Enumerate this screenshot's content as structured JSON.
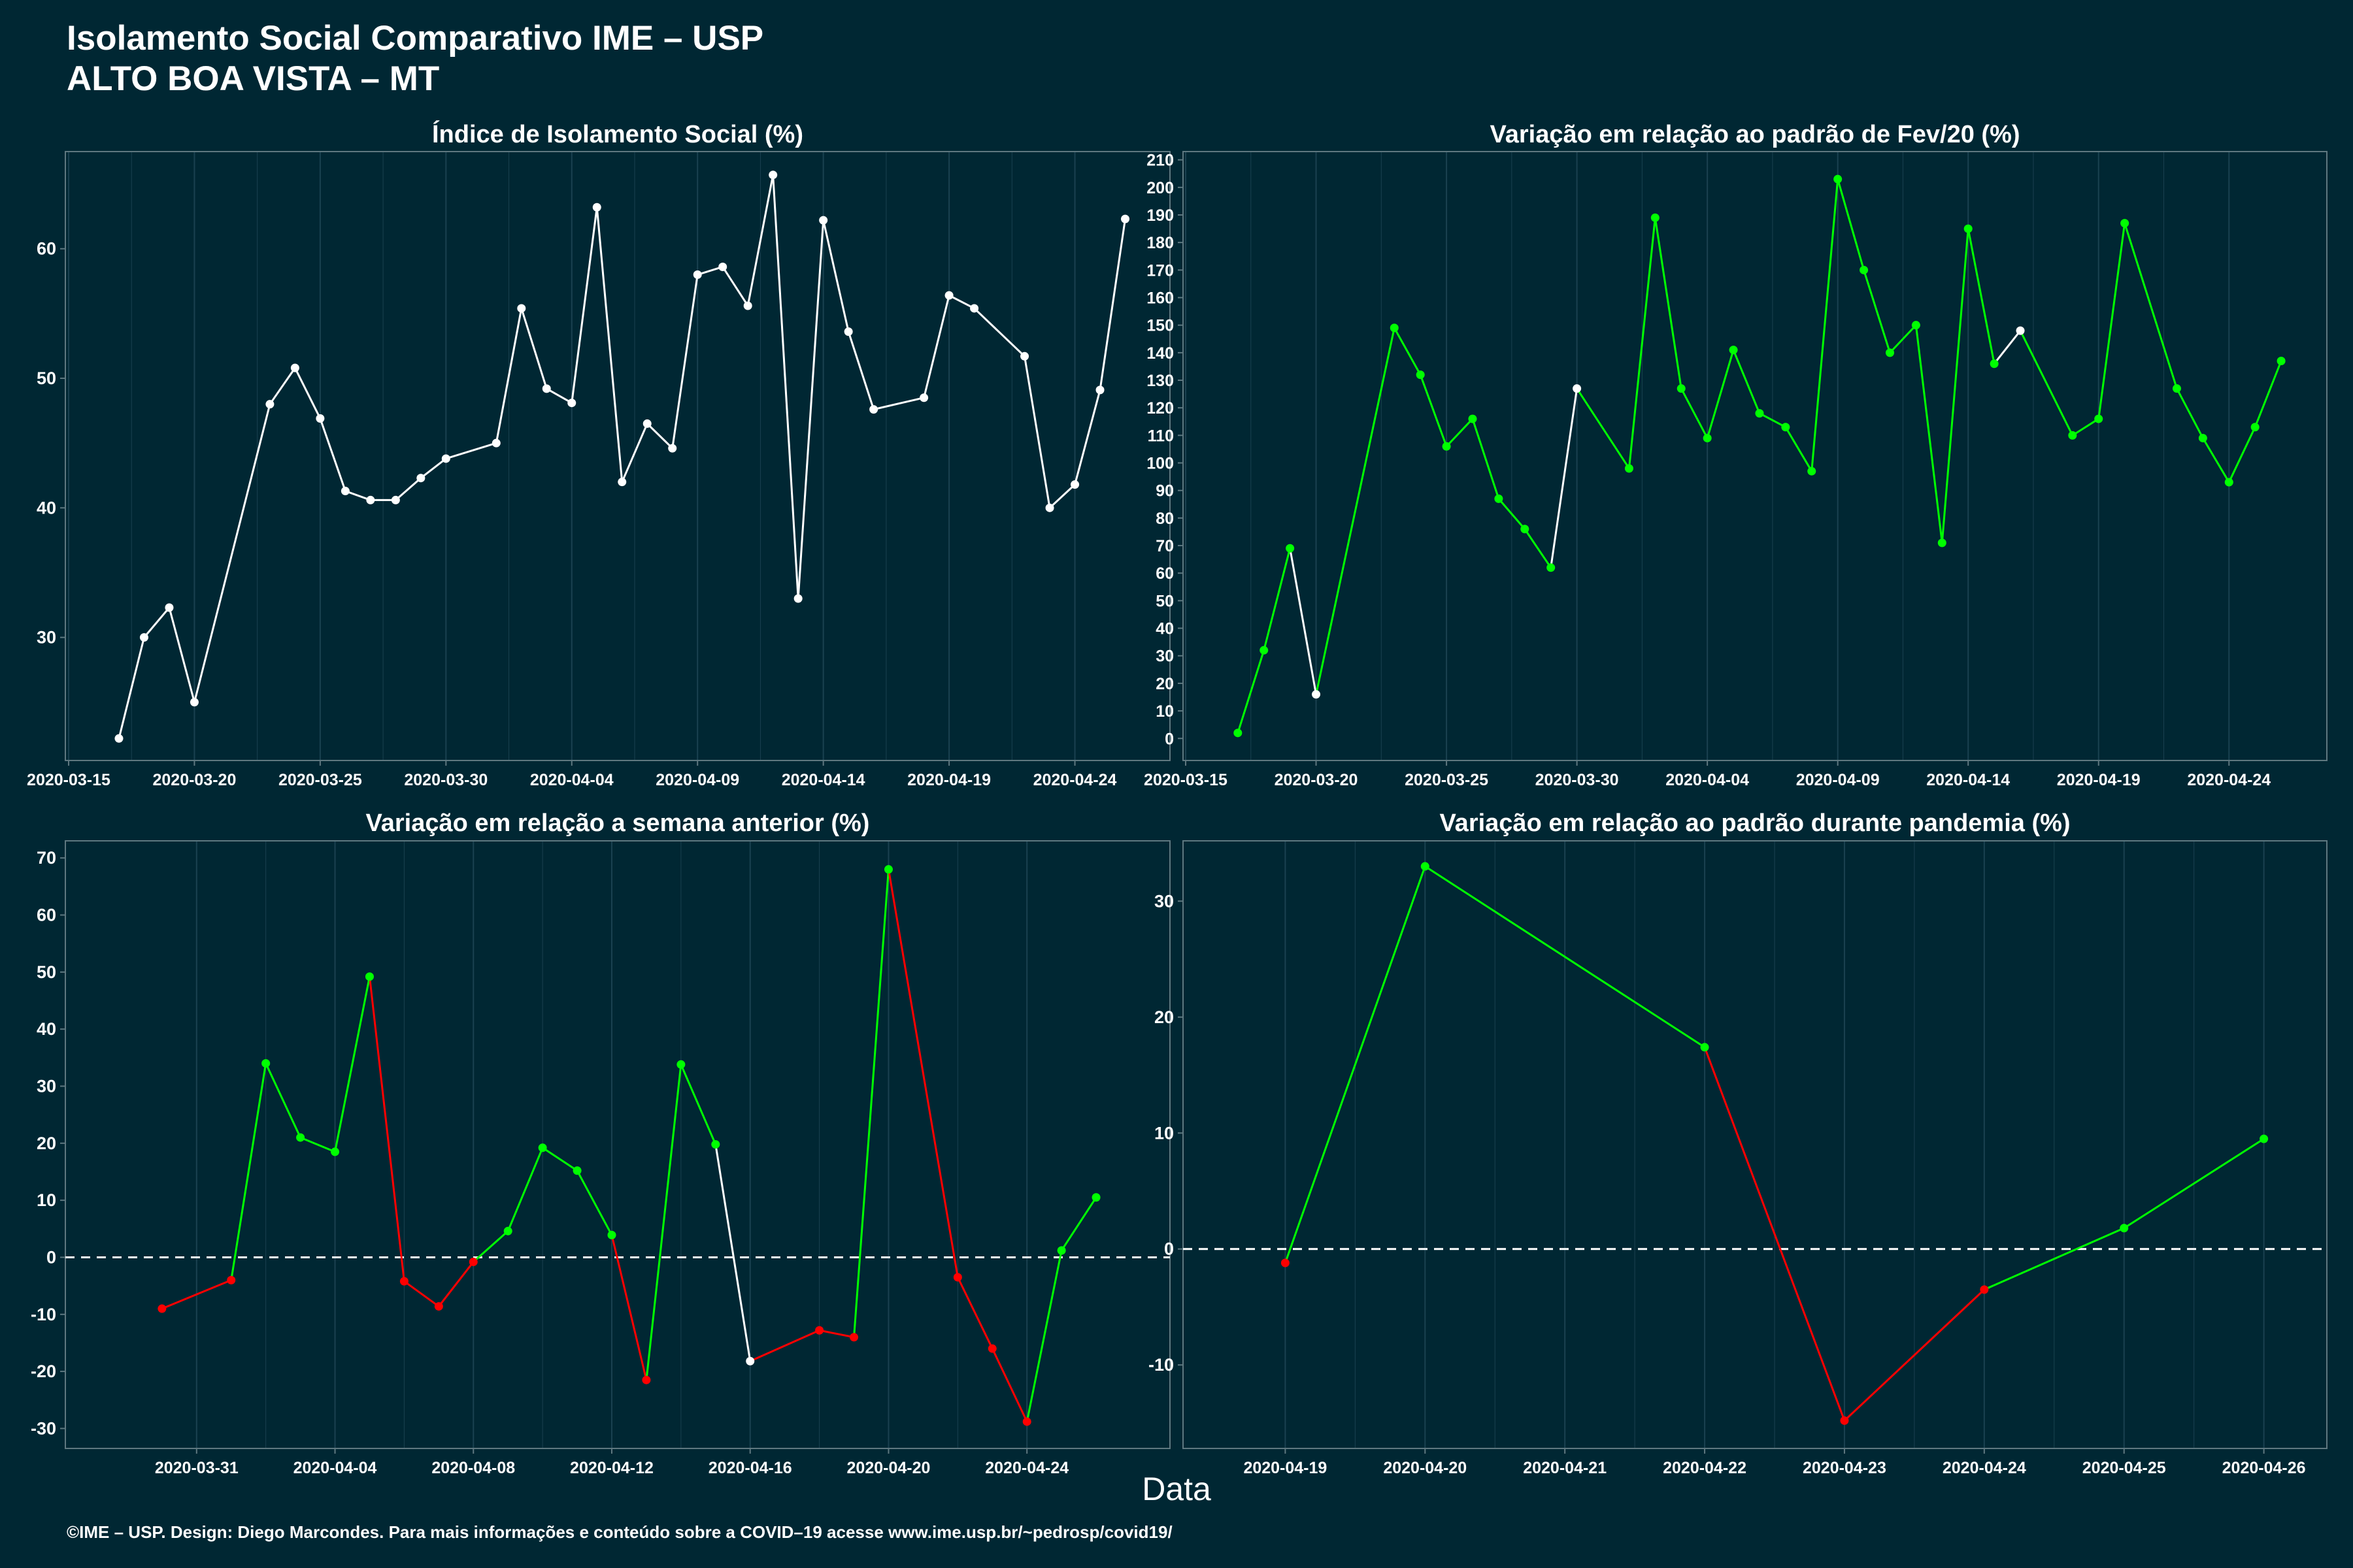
{
  "header": {
    "title_line1": "Isolamento Social Comparativo IME – USP",
    "title_line2": "ALTO BOA VISTA – MT"
  },
  "xlabel": "Data",
  "footer": "©IME – USP. Design: Diego Marcondes. Para mais informações e conteúdo sobre a COVID–19 acesse www.ime.usp.br/~pedrosp/covid19/",
  "colors": {
    "background": "#002733",
    "line_neutral": "#ffffff",
    "increase": "#00ff00",
    "decrease": "#ff0000",
    "panel_border": "#5f7880",
    "grid": "#1a4150"
  },
  "chart_data": [
    {
      "type": "line",
      "title": "Índice de Isolamento Social (%)",
      "x_ticks": [
        "2020-03-15",
        "2020-03-20",
        "2020-03-25",
        "2020-03-30",
        "2020-04-04",
        "2020-04-09",
        "2020-04-14",
        "2020-04-19",
        "2020-04-24"
      ],
      "xlim": [
        "2020-03-15",
        "2020-04-27"
      ],
      "ylim": [
        20.5,
        67.5
      ],
      "y_ticks": [
        30,
        40,
        50,
        60
      ],
      "series": [
        {
          "x": [
            "2020-03-17",
            "2020-03-18",
            "2020-03-19",
            "2020-03-20",
            "2020-03-23",
            "2020-03-24",
            "2020-03-25",
            "2020-03-26",
            "2020-03-27",
            "2020-03-28",
            "2020-03-29",
            "2020-03-30",
            "2020-04-01",
            "2020-04-02",
            "2020-04-03",
            "2020-04-04",
            "2020-04-05",
            "2020-04-06",
            "2020-04-07",
            "2020-04-08",
            "2020-04-09",
            "2020-04-10",
            "2020-04-11",
            "2020-04-12",
            "2020-04-13",
            "2020-04-14",
            "2020-04-15",
            "2020-04-16",
            "2020-04-18",
            "2020-04-19",
            "2020-04-20",
            "2020-04-22",
            "2020-04-23",
            "2020-04-24",
            "2020-04-25",
            "2020-04-26"
          ],
          "y": [
            22.2,
            30.0,
            32.3,
            25.0,
            48.0,
            50.8,
            46.9,
            41.3,
            40.6,
            40.6,
            42.3,
            43.8,
            45.0,
            55.4,
            49.2,
            48.1,
            63.2,
            42.0,
            46.5,
            44.6,
            58.0,
            58.6,
            55.6,
            65.7,
            33.0,
            62.2,
            53.6,
            47.6,
            48.5,
            56.4,
            55.4,
            51.7,
            40.0,
            41.8,
            49.1,
            62.3
          ],
          "colors": [
            "w",
            "w",
            "w",
            "w",
            "w",
            "w",
            "w",
            "w",
            "w",
            "w",
            "w",
            "w",
            "w",
            "w",
            "w",
            "w",
            "w",
            "w",
            "w",
            "w",
            "w",
            "w",
            "w",
            "w",
            "w",
            "w",
            "w",
            "w",
            "w",
            "w",
            "w",
            "w",
            "w",
            "w",
            "w",
            "w"
          ]
        }
      ]
    },
    {
      "type": "line",
      "title": "Variação em relação ao padrão de Fev/20 (%)",
      "x_ticks": [
        "2020-03-15",
        "2020-03-20",
        "2020-03-25",
        "2020-03-30",
        "2020-04-04",
        "2020-04-09",
        "2020-04-14",
        "2020-04-19",
        "2020-04-24"
      ],
      "xlim": [
        "2020-03-15",
        "2020-04-27"
      ],
      "ylim": [
        -8,
        213
      ],
      "y_ticks": [
        0,
        10,
        20,
        30,
        40,
        50,
        60,
        70,
        80,
        90,
        100,
        110,
        120,
        130,
        140,
        150,
        160,
        170,
        180,
        190,
        200,
        210
      ],
      "series": [
        {
          "x": [
            "2020-03-17",
            "2020-03-18",
            "2020-03-19",
            "2020-03-20",
            "2020-03-23",
            "2020-03-24",
            "2020-03-25",
            "2020-03-26",
            "2020-03-27",
            "2020-03-28",
            "2020-03-29",
            "2020-03-30",
            "2020-04-01",
            "2020-04-02",
            "2020-04-03",
            "2020-04-04",
            "2020-04-05",
            "2020-04-06",
            "2020-04-07",
            "2020-04-08",
            "2020-04-09",
            "2020-04-10",
            "2020-04-11",
            "2020-04-12",
            "2020-04-13",
            "2020-04-14",
            "2020-04-15",
            "2020-04-16",
            "2020-04-18",
            "2020-04-19",
            "2020-04-20",
            "2020-04-22",
            "2020-04-23",
            "2020-04-24",
            "2020-04-25",
            "2020-04-26"
          ],
          "y": [
            2,
            32,
            69,
            16,
            149,
            132,
            106,
            116,
            87,
            76,
            62,
            127,
            98,
            189,
            127,
            109,
            141,
            118,
            113,
            97,
            203,
            170,
            140,
            150,
            71,
            185,
            136,
            148,
            110,
            116,
            187,
            127,
            109,
            93,
            113,
            137
          ],
          "colors": [
            "g",
            "g",
            "g",
            "w",
            "g",
            "g",
            "g",
            "g",
            "g",
            "g",
            "g",
            "w",
            "g",
            "g",
            "g",
            "g",
            "g",
            "g",
            "g",
            "g",
            "g",
            "g",
            "g",
            "g",
            "g",
            "g",
            "g",
            "w",
            "g",
            "g",
            "g",
            "g",
            "g",
            "g",
            "g",
            "g"
          ]
        }
      ]
    },
    {
      "type": "line",
      "title": "Variação em relação a semana anterior (%)",
      "x_ticks": [
        "2020-03-31",
        "2020-04-04",
        "2020-04-08",
        "2020-04-12",
        "2020-04-16",
        "2020-04-20",
        "2020-04-24"
      ],
      "xlim": [
        "2020-03-28",
        "2020-04-27"
      ],
      "ylim": [
        -33.5,
        73
      ],
      "y_ticks": [
        -30,
        -20,
        -10,
        0,
        10,
        20,
        30,
        40,
        50,
        60,
        70
      ],
      "reference_line": 0,
      "series": [
        {
          "x": [
            "2020-03-30",
            "2020-04-01",
            "2020-04-02",
            "2020-04-03",
            "2020-04-04",
            "2020-04-05",
            "2020-04-06",
            "2020-04-07",
            "2020-04-08",
            "2020-04-09",
            "2020-04-10",
            "2020-04-11",
            "2020-04-12",
            "2020-04-13",
            "2020-04-14",
            "2020-04-15",
            "2020-04-16",
            "2020-04-18",
            "2020-04-19",
            "2020-04-20",
            "2020-04-22",
            "2020-04-23",
            "2020-04-24",
            "2020-04-25",
            "2020-04-26"
          ],
          "y": [
            -9,
            -4,
            34,
            21,
            18.5,
            49.2,
            -4.2,
            -8.6,
            -0.8,
            4.6,
            19.2,
            15.2,
            3.9,
            -21.5,
            33.8,
            19.8,
            -18.2,
            -12.8,
            -14,
            68,
            -3.5,
            -16,
            -28.8,
            1.2,
            10.5
          ],
          "colors": [
            "r",
            "r",
            "g",
            "g",
            "g",
            "g",
            "r",
            "r",
            "r",
            "g",
            "g",
            "g",
            "g",
            "r",
            "g",
            "g",
            "w",
            "r",
            "r",
            "g",
            "r",
            "r",
            "r",
            "g",
            "g"
          ]
        }
      ]
    },
    {
      "type": "line",
      "title": "Variação em relação ao padrão durante pandemia (%)",
      "x_ticks": [
        "2020-04-19",
        "2020-04-20",
        "2020-04-21",
        "2020-04-22",
        "2020-04-23",
        "2020-04-24",
        "2020-04-25",
        "2020-04-26"
      ],
      "xlim": [
        "2020-04-18.9",
        "2020-04-26.1"
      ],
      "ylim": [
        -17.2,
        35.2
      ],
      "y_ticks": [
        -10,
        0,
        10,
        20,
        30
      ],
      "reference_line": 0,
      "series": [
        {
          "x": [
            "2020-04-19",
            "2020-04-20",
            "2020-04-22",
            "2020-04-23",
            "2020-04-24",
            "2020-04-25",
            "2020-04-26"
          ],
          "y": [
            -1.2,
            33,
            17.4,
            -14.8,
            -3.5,
            1.8,
            9.5
          ],
          "colors": [
            "r",
            "g",
            "g",
            "r",
            "r",
            "g",
            "g"
          ]
        }
      ]
    }
  ]
}
